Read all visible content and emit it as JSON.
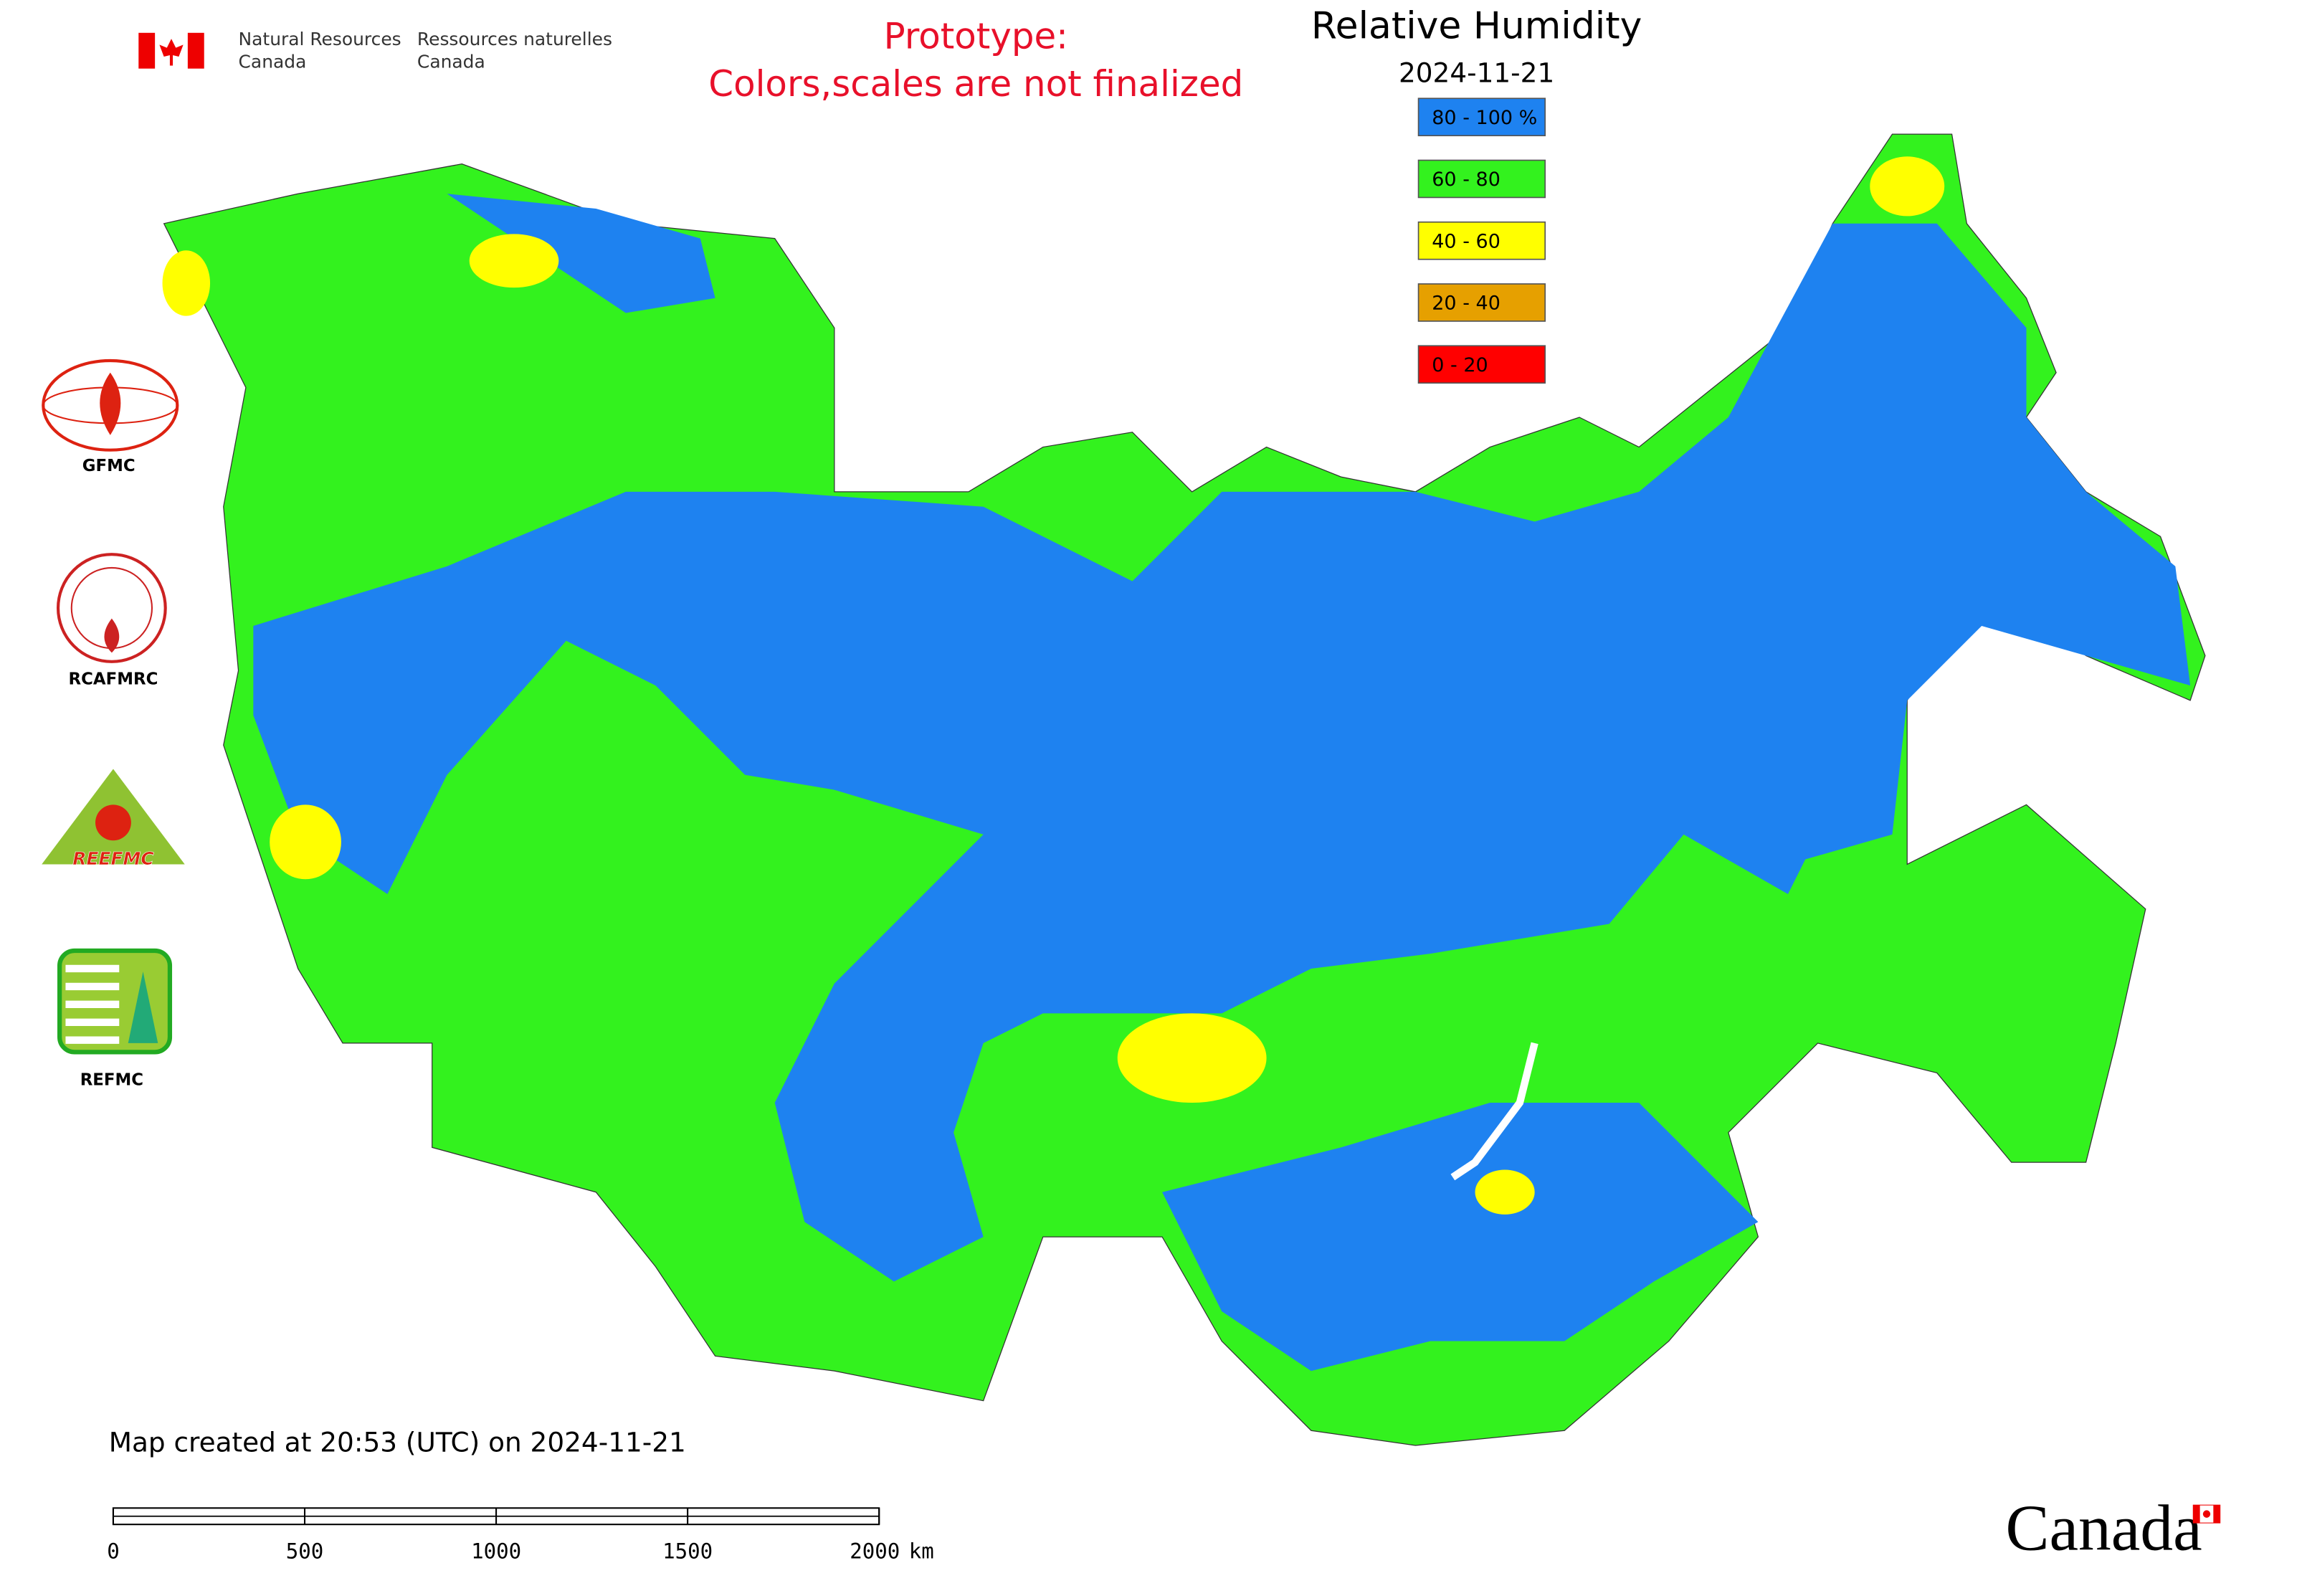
{
  "header": {
    "agency_en": [
      "Natural Resources",
      "Canada"
    ],
    "agency_fr": [
      "Ressources naturelles",
      "Canada"
    ]
  },
  "notice": [
    "Prototype:",
    "Colors,scales are not finalized"
  ],
  "title": "Relative Humidity",
  "date": "2024-11-21",
  "legend": [
    {
      "label": "80 - 100 %",
      "color": "#1e82f0"
    },
    {
      "label": "60 - 80",
      "color": "#33f21e"
    },
    {
      "label": "40 - 60",
      "color": "#ffff00"
    },
    {
      "label": "20 - 40",
      "color": "#e6a000"
    },
    {
      "label": "0 - 20",
      "color": "#ff0000"
    }
  ],
  "logos": [
    "GFMC",
    "RCAFMRC",
    "REEFMC",
    "REFMC"
  ],
  "footer": "Map created at 20:53 (UTC) on 2024-11-21",
  "scale_bar": {
    "ticks": [
      0,
      500,
      1000,
      1500,
      2000
    ],
    "unit": "km"
  },
  "wordmark": "Canada"
}
